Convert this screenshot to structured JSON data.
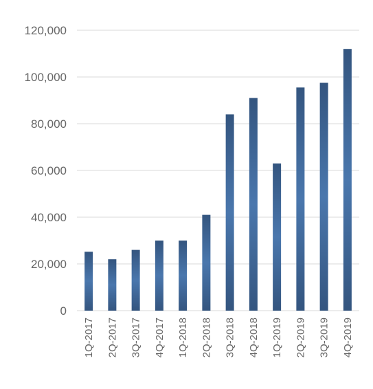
{
  "chart_data": {
    "type": "bar",
    "title": "",
    "xlabel": "",
    "ylabel": "",
    "categories": [
      "1Q-2017",
      "2Q-2017",
      "3Q-2017",
      "4Q-2017",
      "1Q-2018",
      "2Q-2018",
      "3Q-2018",
      "4Q-2018",
      "1Q-2019",
      "2Q-2019",
      "3Q-2019",
      "4Q-2019"
    ],
    "values": [
      25200,
      22000,
      26000,
      30000,
      30000,
      41000,
      84000,
      91000,
      63000,
      95500,
      97500,
      112000
    ],
    "ylim": [
      0,
      120000
    ],
    "yticks": [
      "0",
      "20,000",
      "40,000",
      "60,000",
      "80,000",
      "100,000",
      "120,000"
    ],
    "grid": true,
    "legend": "none",
    "bar_color": "#3d5f8f",
    "bar_color_light": "#4a77ad"
  }
}
